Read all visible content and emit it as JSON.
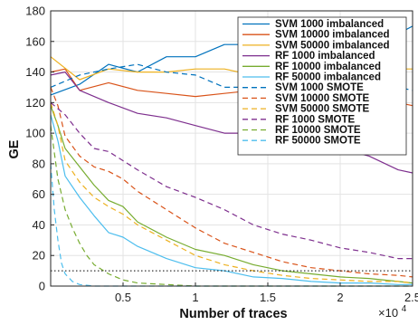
{
  "chart_data": {
    "type": "line",
    "title": "",
    "xlabel": "Number of traces",
    "ylabel": "GE",
    "x_multiplier_label": "×10",
    "x_multiplier_exp": "4",
    "xlim": [
      0,
      25000
    ],
    "ylim": [
      0,
      180
    ],
    "grid": true,
    "legend_position": "top-right",
    "x_ticks": [
      5000,
      10000,
      15000,
      20000,
      25000
    ],
    "x_tick_labels": [
      "0.5",
      "1",
      "1.5",
      "2",
      "2.5"
    ],
    "y_ticks": [
      0,
      20,
      40,
      60,
      80,
      100,
      120,
      140,
      160,
      180
    ],
    "y_tick_labels": [
      "0",
      "20",
      "40",
      "60",
      "80",
      "100",
      "120",
      "140",
      "160",
      "180"
    ],
    "reference_line": {
      "y": 10,
      "style": "dotted",
      "color": "#000000"
    },
    "series": [
      {
        "name": "SVM 1000 imbalanced",
        "color": "#0072BD",
        "dash": "solid",
        "x": [
          0,
          2000,
          4000,
          6000,
          8000,
          10000,
          12000,
          14000,
          16000,
          18000,
          20000,
          22000,
          24000,
          25000
        ],
        "y": [
          125,
          132,
          145,
          140,
          150,
          150,
          158,
          158,
          162,
          168,
          165,
          160,
          165,
          170
        ]
      },
      {
        "name": "SVM 10000 imbalanced",
        "color": "#D95319",
        "dash": "solid",
        "x": [
          0,
          1000,
          2000,
          4000,
          6000,
          8000,
          10000,
          12000,
          14000,
          16000,
          18000,
          20000,
          22000,
          24000,
          25000
        ],
        "y": [
          140,
          142,
          128,
          133,
          128,
          126,
          124,
          126,
          128,
          126,
          125,
          124,
          125,
          120,
          118
        ]
      },
      {
        "name": "SVM 50000 imbalanced",
        "color": "#EDB120",
        "dash": "solid",
        "x": [
          0,
          2000,
          4000,
          6000,
          8000,
          10000,
          12000,
          14000,
          16000,
          18000,
          20000,
          22000,
          24000,
          25000
        ],
        "y": [
          150,
          135,
          142,
          140,
          140,
          142,
          142,
          138,
          140,
          142,
          143,
          140,
          142,
          142
        ]
      },
      {
        "name": "RF 1000 imbalanced",
        "color": "#7E2F8E",
        "dash": "solid",
        "x": [
          0,
          1000,
          2000,
          4000,
          6000,
          8000,
          10000,
          12000,
          14000,
          16000,
          18000,
          20000,
          22000,
          24000,
          25000
        ],
        "y": [
          138,
          140,
          128,
          120,
          113,
          110,
          105,
          100,
          100,
          96,
          92,
          90,
          85,
          76,
          74
        ]
      },
      {
        "name": "RF 10000 imbalanced",
        "color": "#77AC30",
        "dash": "solid",
        "x": [
          0,
          500,
          1000,
          2000,
          3000,
          4000,
          5000,
          6000,
          8000,
          10000,
          12000,
          14000,
          16000,
          18000,
          20000,
          22000,
          24000,
          25000
        ],
        "y": [
          118,
          105,
          90,
          78,
          66,
          56,
          52,
          42,
          32,
          24,
          20,
          14,
          10,
          8,
          6,
          5,
          3,
          2
        ]
      },
      {
        "name": "RF 50000 imbalanced",
        "color": "#4DBEEE",
        "dash": "solid",
        "x": [
          0,
          500,
          1000,
          2000,
          3000,
          4000,
          5000,
          6000,
          8000,
          10000,
          12000,
          14000,
          16000,
          18000,
          20000,
          22000,
          24000,
          25000
        ],
        "y": [
          112,
          95,
          72,
          58,
          46,
          35,
          32,
          26,
          18,
          12,
          10,
          6,
          5,
          3,
          2,
          2,
          1,
          1
        ]
      },
      {
        "name": "SVM 1000 SMOTE",
        "color": "#0072BD",
        "dash": "dashed",
        "x": [
          0,
          2000,
          4000,
          6000,
          8000,
          10000,
          12000,
          14000,
          16000,
          18000,
          20000,
          22000,
          24000,
          25000
        ],
        "y": [
          130,
          138,
          142,
          145,
          140,
          138,
          130,
          130,
          135,
          138,
          135,
          132,
          130,
          128
        ]
      },
      {
        "name": "SVM 10000 SMOTE",
        "color": "#D95319",
        "dash": "dashed",
        "x": [
          0,
          500,
          1000,
          2000,
          3000,
          4000,
          5000,
          6000,
          8000,
          10000,
          12000,
          14000,
          16000,
          18000,
          20000,
          22000,
          24000,
          25000
        ],
        "y": [
          130,
          118,
          98,
          85,
          78,
          75,
          70,
          62,
          50,
          38,
          28,
          22,
          16,
          12,
          10,
          8,
          7,
          6
        ]
      },
      {
        "name": "SVM 50000 SMOTE",
        "color": "#EDB120",
        "dash": "dashed",
        "x": [
          0,
          500,
          1000,
          2000,
          3000,
          4000,
          5000,
          6000,
          8000,
          10000,
          12000,
          14000,
          16000,
          18000,
          20000,
          22000,
          24000,
          25000
        ],
        "y": [
          120,
          105,
          82,
          68,
          58,
          52,
          47,
          40,
          30,
          20,
          14,
          10,
          7,
          5,
          4,
          3,
          3,
          2
        ]
      },
      {
        "name": "RF 1000 SMOTE",
        "color": "#7E2F8E",
        "dash": "dashed",
        "x": [
          0,
          1000,
          2000,
          3000,
          4000,
          6000,
          8000,
          10000,
          12000,
          14000,
          16000,
          18000,
          20000,
          22000,
          24000,
          25000
        ],
        "y": [
          120,
          112,
          100,
          90,
          88,
          76,
          65,
          58,
          50,
          40,
          34,
          30,
          25,
          22,
          18,
          18
        ]
      },
      {
        "name": "RF 10000 SMOTE",
        "color": "#77AC30",
        "dash": "dashed",
        "x": [
          0,
          500,
          1000,
          1500,
          2000,
          2500,
          3000,
          4000,
          5000,
          6000,
          8000,
          10000,
          15000,
          20000,
          25000
        ],
        "y": [
          105,
          70,
          50,
          38,
          28,
          20,
          14,
          8,
          4,
          2,
          1,
          0,
          0,
          0,
          0
        ]
      },
      {
        "name": "RF 50000 SMOTE",
        "color": "#4DBEEE",
        "dash": "dashed",
        "x": [
          0,
          250,
          500,
          750,
          1000,
          1500,
          2000,
          3000,
          4000,
          6000,
          10000,
          15000,
          20000,
          25000
        ],
        "y": [
          80,
          50,
          30,
          15,
          8,
          3,
          1,
          0,
          0,
          0,
          0,
          0,
          0,
          0
        ]
      }
    ]
  }
}
